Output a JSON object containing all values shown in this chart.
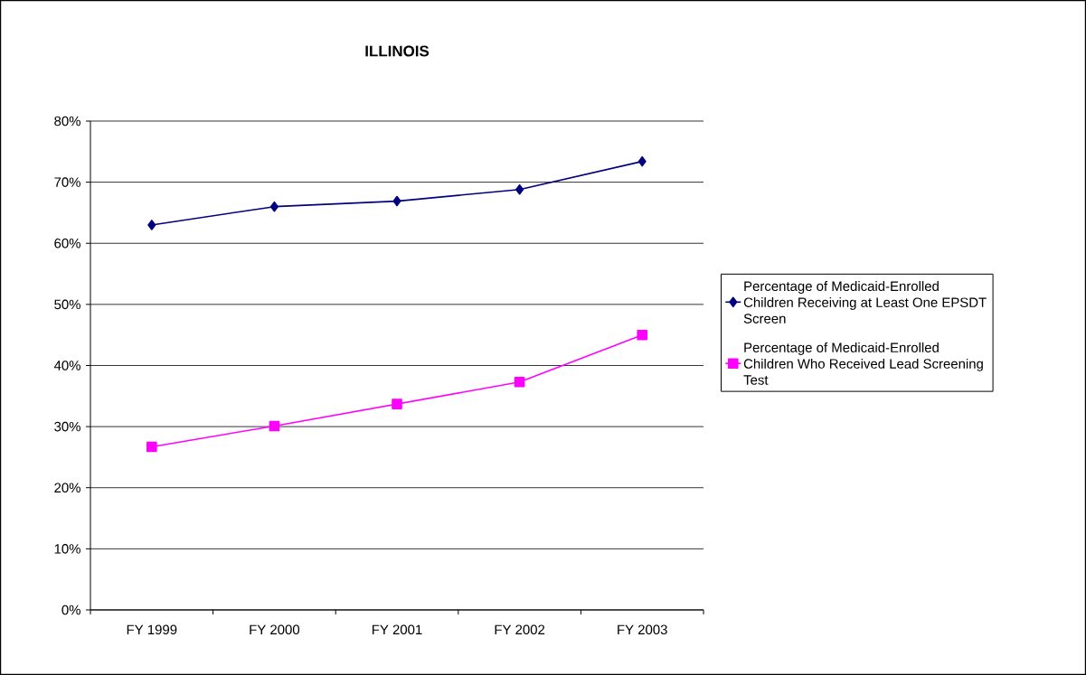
{
  "chart_data": {
    "type": "line",
    "title": "ILLINOIS",
    "categories": [
      "FY 1999",
      "FY 2000",
      "FY 2001",
      "FY 2002",
      "FY 2003"
    ],
    "series": [
      {
        "name": "Percentage of Medicaid-Enrolled Children Receiving at Least One EPSDT Screen",
        "color": "#000080",
        "marker": "diamond",
        "values": [
          63.0,
          66.0,
          66.9,
          68.8,
          73.4
        ]
      },
      {
        "name": "Percentage of Medicaid-Enrolled Children Who Received Lead Screening Test",
        "color": "#ff00ff",
        "marker": "square",
        "values": [
          26.7,
          30.1,
          33.7,
          37.3,
          45.0
        ]
      }
    ],
    "ylim": [
      0,
      80
    ],
    "yticks": [
      {
        "value": 0,
        "label": "0%"
      },
      {
        "value": 10,
        "label": "10%"
      },
      {
        "value": 20,
        "label": "20%"
      },
      {
        "value": 30,
        "label": "30%"
      },
      {
        "value": 40,
        "label": "40%"
      },
      {
        "value": 50,
        "label": "50%"
      },
      {
        "value": 60,
        "label": "60%"
      },
      {
        "value": 70,
        "label": "70%"
      },
      {
        "value": 80,
        "label": "80%"
      }
    ],
    "grid": "y",
    "legend": "right",
    "line_style": "solid"
  }
}
